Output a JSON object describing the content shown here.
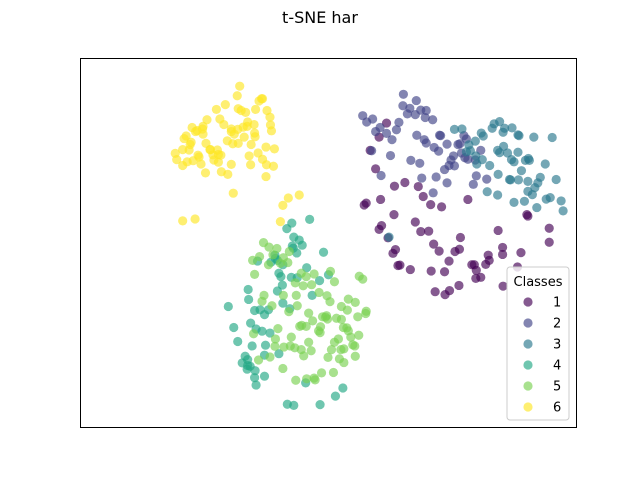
{
  "chart_data": {
    "type": "scatter",
    "title": "t-SNE har",
    "xlabel": "",
    "ylabel": "",
    "xlim": [
      0,
      100
    ],
    "ylim": [
      0,
      100
    ],
    "grid": false,
    "axis_ticks": false,
    "legend": {
      "title": "Classes",
      "placement": "bottom-right"
    },
    "series": [
      {
        "name": "1",
        "color": "#440154",
        "x": [
          57.6,
          57.2,
          59.5,
          58.4,
          60.2,
          61.7,
          60.7,
          63.2,
          63.0,
          64.0,
          65.4,
          68.1,
          67.5,
          70.6,
          71.2,
          72.3,
          70.7,
          73.4,
          73.5,
          71.5,
          74.4,
          75.5,
          76.4,
          76.6,
          78.1,
          78.9,
          79.4,
          80.7,
          81.7,
          82.2,
          85.1,
          85.1,
          88.8,
          88.1,
          90.0,
          90.2,
          94.5,
          94.5,
          63.5,
          68.6,
          74.3,
          79.7,
          76.3,
          64.4,
          62.0,
          66.5,
          72.8,
          69.1,
          63.3,
          60.5,
          79.8,
          84.2,
          70.2,
          60.2,
          82.4,
          85.2
        ],
        "y": [
          60.8,
          60.3,
          70.1,
          75.1,
          78.7,
          82.5,
          54.7,
          57.7,
          47.2,
          43.9,
          66.4,
          65.3,
          55.7,
          60.4,
          49.7,
          47.8,
          42.4,
          42.2,
          36.0,
          36.8,
          37.1,
          47.7,
          48.3,
          51.5,
          61.8,
          44.1,
          44.1,
          40.7,
          44.2,
          46.7,
          48.8,
          46.9,
          47.4,
          43.5,
          57.7,
          57.3,
          54.0,
          50.2,
          48.2,
          53.1,
          45.1,
          40.4,
          38.5,
          44.0,
          51.4,
          42.8,
          59.8,
          62.6,
          65.4,
          61.8,
          42.6,
          53.4,
          53.2,
          53.7,
          45.3,
          38.3
        ]
      },
      {
        "name": "2",
        "color": "#414487",
        "x": [
          63.7,
          65.9,
          67.7,
          69.7,
          71.0,
          72.4,
          73.9,
          75.4,
          76.5,
          78.1,
          79.2,
          80.7,
          73.9,
          71.1,
          69.3,
          67.8,
          67.5,
          66.4,
          65.1,
          65.0,
          64.2,
          62.8,
          61.7,
          60.4,
          59.5,
          58.9,
          57.7,
          56.9,
          58.7,
          60.6,
          62.5,
          66.6,
          68.6,
          69.5,
          71.3,
          72.2,
          73.4,
          74.7,
          76.1,
          77.8,
          76.8,
          74.3,
          71.7,
          68.8,
          68.4,
          69.7,
          72.6,
          75.2,
          77.3,
          79.6,
          81.9,
          79.8,
          77.5
        ],
        "y": [
          80.7,
          85.0,
          88.6,
          85.9,
          83.4,
          79.2,
          76.8,
          70.9,
          76.9,
          72.7,
          65.9,
          75.1,
          66.3,
          63.6,
          78.0,
          79.2,
          84.8,
          86.5,
          90.3,
          87.2,
          82.7,
          78.0,
          79.7,
          81.3,
          80.2,
          83.6,
          82.8,
          84.5,
          75.0,
          68.3,
          73.7,
          72.4,
          86.0,
          84.0,
          75.9,
          74.9,
          69.9,
          72.5,
          76.7,
          78.2,
          74.4,
          71.0,
          67.9,
          67.6,
          71.6,
          77.1,
          79.1,
          73.6,
          79.1,
          72.5,
          67.3,
          68.2,
          73.1
        ]
      },
      {
        "name": "3",
        "color": "#2a788e",
        "x": [
          76.9,
          78.3,
          79.7,
          81.2,
          81.0,
          82.5,
          83.0,
          84.1,
          84.5,
          85.2,
          86.1,
          87.0,
          87.4,
          88.3,
          88.4,
          89.7,
          90.3,
          91.6,
          92.7,
          93.9,
          94.7,
          95.1,
          95.9,
          96.9,
          97.3,
          92.2,
          91.1,
          90.5,
          89.5,
          88.9,
          87.4,
          86.7,
          85.3,
          84.2,
          83.4,
          82.0,
          80.8,
          79.9,
          78.6,
          77.8,
          85.5,
          88.2,
          90.2,
          92.0,
          93.7,
          86.9,
          84.5,
          86.5,
          79.6,
          62.2,
          84.1,
          75.4,
          88.2,
          90.2,
          91.4
        ],
        "y": [
          80.9,
          76.6,
          73.6,
          79.0,
          72.6,
          71.0,
          81.1,
          75.1,
          82.9,
          80.0,
          74.4,
          81.2,
          72.0,
          67.1,
          79.1,
          72.4,
          72.9,
          65.0,
          67.8,
          61.9,
          62.3,
          78.6,
          67.2,
          61.4,
          58.7,
          66.3,
          63.1,
          72.4,
          61.3,
          69.6,
          61.0,
          67.1,
          76.2,
          68.6,
          82.3,
          63.9,
          79.8,
          71.4,
          75.0,
          74.7,
          81.1,
          79.3,
          66.7,
          59.6,
          71.4,
          72.6,
          74.5,
          67.2,
          77.6,
          51.6,
          63.0,
          80.8,
          74.6,
          64.0,
          78.7
        ]
      },
      {
        "name": "4",
        "color": "#22a884",
        "x": [
          29.8,
          30.9,
          31.7,
          32.6,
          33.6,
          34.2,
          35.2,
          34.6,
          35.4,
          33.2,
          35.4,
          33.9,
          35.1,
          37.1,
          37.3,
          37.9,
          39.7,
          40.7,
          42.5,
          43.7,
          43.6,
          44.7,
          45.6,
          46.7,
          48.2,
          49.0,
          50.0,
          46.2,
          44.1,
          40.0,
          41.6,
          42.7,
          42.9,
          43.0,
          42.6,
          39.2,
          33.8,
          36.2,
          38.2,
          45.4,
          48.3,
          51.4,
          52.9,
          41.7,
          42.2,
          39.3,
          37.1,
          40.4,
          43.0,
          40.8,
          34.3,
          33.7,
          40.8,
          38.4,
          35.7,
          40.0,
          36.6,
          33.7,
          39.7,
          37.1,
          35.1
        ],
        "y": [
          32.8,
          27.1,
          23.3,
          17.5,
          15.8,
          16.6,
          15.4,
          22.1,
          11.5,
          19.3,
          26.7,
          34.7,
          31.7,
          30.6,
          22.3,
          31.9,
          45.3,
          38.6,
          40.7,
          40.6,
          47.3,
          49.4,
          43.3,
          35.8,
          39.8,
          47.5,
          41.4,
          56.4,
          50.8,
          41.8,
          53.9,
          49.2,
          48.6,
          51.6,
          55.4,
          46.7,
          37.4,
          31.9,
          25.6,
          12.1,
          6.2,
          8.5,
          10.7,
          6.3,
          32.2,
          45.8,
          19.6,
          40.9,
          6.0,
          44.1,
          28.3,
          18.4,
          33.7,
          44.8,
          45.1,
          20.0,
          26.1,
          16.8,
          37.0,
          13.9,
          13.5
        ]
      },
      {
        "name": "5",
        "color": "#7ad151",
        "x": [
          34.7,
          36.1,
          36.9,
          37.9,
          38.0,
          38.8,
          39.6,
          40.3,
          40.9,
          41.8,
          42.1,
          43.3,
          43.5,
          44.5,
          44.9,
          45.5,
          46.6,
          47.1,
          48.1,
          48.4,
          49.4,
          49.6,
          50.3,
          51.2,
          51.6,
          52.2,
          53.0,
          54.0,
          54.9,
          55.4,
          55.9,
          56.2,
          57.5,
          57.6,
          56.9,
          56.1,
          55.4,
          54.5,
          53.8,
          53.1,
          52.6,
          52.6,
          52.0,
          51.2,
          50.6,
          49.9,
          49.7,
          48.8,
          48.3,
          47.1,
          46.5,
          46.0,
          45.6,
          44.6,
          44.5,
          43.4,
          43.2,
          42.5,
          42.0,
          41.0,
          40.9,
          39.8,
          39.3,
          38.6,
          38.2,
          37.0,
          36.6,
          35.9,
          35.1,
          34.9,
          44.2,
          46.8,
          48.6,
          52.5,
          55.3,
          40.8,
          42.3,
          50.4,
          53.1,
          45.5,
          48.0,
          51.0,
          43.7,
          39.2,
          46.0,
          53.7,
          49.8,
          45.0,
          47.3,
          54.0
        ],
        "y": [
          45.3,
          46.3,
          50.1,
          44.1,
          48.9,
          46.8,
          48.5,
          44.5,
          46.0,
          44.7,
          47.7,
          39.2,
          35.8,
          41.8,
          38.4,
          40.9,
          38.7,
          41.6,
          36.6,
          27.3,
          29.9,
          30.3,
          34.1,
          39.5,
          29.6,
          18.6,
          27.1,
          34.8,
          22.4,
          33.9,
          30.0,
          41.0,
          30.9,
          31.5,
          40.2,
          25.0,
          19.3,
          24.5,
          31.8,
          21.3,
          32.8,
          29.3,
          24.0,
          23.1,
          21.1,
          19.0,
          35.7,
          30.0,
          25.7,
          13.4,
          20.8,
          23.1,
          13.2,
          27.7,
          21.1,
          12.8,
          21.6,
          24.5,
          31.4,
          21.8,
          35.8,
          26.8,
          24.0,
          33.0,
          19.1,
          35.8,
          34.2,
          18.3,
          41.5,
          25.4,
          27.4,
          28.9,
          14.8,
          21.1,
          22.1,
          16.0,
          22.1,
          42.3,
          17.6,
          27.4,
          26.2,
          14.9,
          33.0,
          22.0,
          31.0,
          27.0,
          29.4,
          19.4,
          12.9,
          26.2
        ]
      },
      {
        "name": "6",
        "color": "#fde725",
        "x": [
          19.4,
          20.6,
          21.9,
          22.7,
          23.5,
          24.7,
          25.3,
          26.2,
          26.7,
          27.8,
          28.3,
          29.6,
          30.4,
          31.0,
          31.7,
          32.8,
          33.0,
          34.0,
          34.3,
          35.2,
          35.8,
          36.7,
          37.4,
          37.5,
          38.5,
          38.9,
          39.1,
          37.6,
          38.3,
          36.5,
          35.3,
          33.6,
          32.1,
          31.8,
          30.4,
          28.9,
          27.8,
          26.1,
          24.7,
          23.9,
          22.5,
          21.5,
          20.6,
          21.3,
          23.7,
          25.5,
          28.1,
          30.7,
          33.3,
          36.0,
          38.2,
          35.1,
          31.6,
          28.4,
          25.2,
          22.3,
          23.2,
          26.9,
          29.7,
          32.4,
          35.0,
          37.4,
          20.9,
          24.3,
          27.4,
          30.4,
          33.7,
          36.7,
          29.2,
          31.8,
          34.4,
          27.6,
          24.6,
          22.1,
          19.1,
          40.3,
          41.9,
          40.8,
          44.1,
          30.8,
          20.6,
          23.1
        ],
        "y": [
          72.6,
          71.0,
          75.2,
          72.3,
          80.5,
          79.5,
          77.0,
          75.3,
          73.9,
          71.9,
          73.8,
          77.7,
          80.2,
          79.5,
          80.8,
          81.4,
          78.7,
          73.6,
          71.2,
          78.8,
          74.4,
          72.7,
          68.0,
          71.2,
          80.4,
          70.8,
          75.5,
          85.9,
          82.0,
          89.1,
          86.2,
          81.6,
          92.5,
          86.4,
          71.3,
          82.1,
          74.0,
          75.3,
          81.6,
          73.3,
          81.3,
          72.0,
          75.3,
          79.0,
          73.8,
          83.4,
          83.6,
          76.9,
          85.4,
          88.5,
          84.1,
          79.8,
          89.9,
          69.3,
          69.0,
          77.3,
          80.2,
          72.5,
          68.6,
          85.9,
          82.1,
          76.0,
          78.3,
          71.4,
          86.2,
          80.9,
          82.8,
          89.1,
          87.5,
          77.0,
          76.7,
          75.2,
          80.9,
          76.7,
          74.3,
          55.8,
          62.2,
          60.2,
          63.0,
          63.5,
          56.0,
          56.5
        ]
      }
    ]
  }
}
